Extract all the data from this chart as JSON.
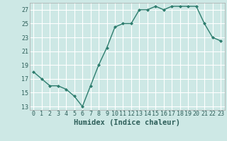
{
  "x": [
    0,
    1,
    2,
    3,
    4,
    5,
    6,
    7,
    8,
    9,
    10,
    11,
    12,
    13,
    14,
    15,
    16,
    17,
    18,
    19,
    20,
    21,
    22,
    23
  ],
  "y": [
    18,
    17,
    16,
    16,
    15.5,
    14.5,
    13,
    16,
    19,
    21.5,
    24.5,
    25,
    25,
    27,
    27,
    27.5,
    27,
    27.5,
    27.5,
    27.5,
    27.5,
    25,
    23,
    22.5
  ],
  "line_color": "#2e7d6e",
  "marker_color": "#2e7d6e",
  "bg_color": "#cde8e5",
  "grid_color": "#ffffff",
  "xlabel": "Humidex (Indice chaleur)",
  "ylim": [
    12.5,
    28
  ],
  "xlim": [
    -0.5,
    23.5
  ],
  "yticks": [
    13,
    15,
    17,
    19,
    21,
    23,
    25,
    27
  ],
  "xtick_labels": [
    "0",
    "1",
    "2",
    "3",
    "4",
    "5",
    "6",
    "7",
    "8",
    "9",
    "10",
    "11",
    "12",
    "13",
    "14",
    "15",
    "16",
    "17",
    "18",
    "19",
    "20",
    "21",
    "22",
    "23"
  ],
  "font_color": "#2e5f5a",
  "tick_fontsize": 6.0,
  "xlabel_fontsize": 7.5
}
